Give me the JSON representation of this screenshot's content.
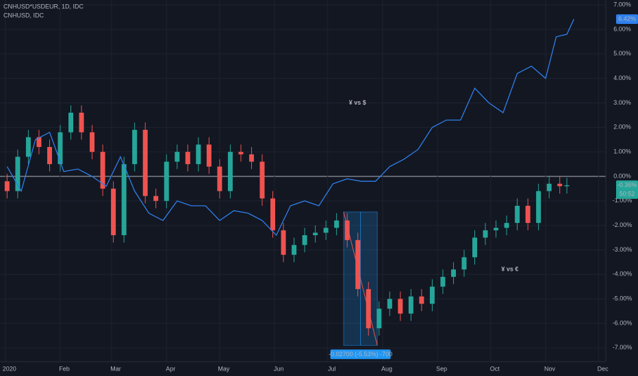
{
  "chart_data": {
    "type": "candlestick",
    "xlim": [
      -2,
      340
    ],
    "ylim": [
      -7.45,
      7.2
    ],
    "grid": true,
    "background": "#131722",
    "xticks": [
      {
        "value": 1,
        "label": "2020"
      },
      {
        "value": 32,
        "label": "Feb"
      },
      {
        "value": 61,
        "label": "Mar"
      },
      {
        "value": 92,
        "label": "Apr"
      },
      {
        "value": 122,
        "label": "May"
      },
      {
        "value": 153,
        "label": "Jun"
      },
      {
        "value": 183,
        "label": "Jul"
      },
      {
        "value": 214,
        "label": "Aug"
      },
      {
        "value": 245,
        "label": "Sep"
      },
      {
        "value": 275,
        "label": "Oct"
      },
      {
        "value": 306,
        "label": "Nov"
      },
      {
        "value": 336,
        "label": "Dec"
      }
    ],
    "yticks": [
      {
        "value": 7,
        "label": "7.00%"
      },
      {
        "value": 6,
        "label": "6.00%"
      },
      {
        "value": 5,
        "label": "5.00%"
      },
      {
        "value": 4,
        "label": "4.00%"
      },
      {
        "value": 3,
        "label": "3.00%"
      },
      {
        "value": 2,
        "label": "2.00%"
      },
      {
        "value": 1,
        "label": "1.00%"
      },
      {
        "value": 0,
        "label": "0.00%"
      },
      {
        "value": -1,
        "label": "-1.00%"
      },
      {
        "value": -2,
        "label": "-2.00%"
      },
      {
        "value": -3,
        "label": "-3.00%"
      },
      {
        "value": -4,
        "label": "-4.00%"
      },
      {
        "value": -5,
        "label": "-5.00%"
      },
      {
        "value": -6,
        "label": "-6.00%"
      },
      {
        "value": -7,
        "label": "-7.00%"
      }
    ],
    "series": [
      {
        "name": "CNHUSD*USDEUR, 1D, IDC",
        "type": "candlestick",
        "up_color": "#26a69a",
        "down_color": "#ef5350",
        "x": [
          2,
          8,
          14,
          20,
          26,
          32,
          38,
          44,
          50,
          56,
          62,
          68,
          74,
          80,
          86,
          92,
          98,
          104,
          110,
          116,
          122,
          128,
          134,
          140,
          146,
          152,
          158,
          164,
          170,
          176,
          182,
          188,
          194,
          200,
          206,
          212,
          218,
          224,
          230,
          236,
          242,
          248,
          254,
          260,
          266,
          272,
          278,
          284,
          290,
          296,
          302,
          308,
          314,
          318
        ],
        "opens": [
          -0.2,
          -0.6,
          0.8,
          1.6,
          1.2,
          0.5,
          1.8,
          2.6,
          1.8,
          1.0,
          -0.5,
          -2.4,
          0.5,
          1.9,
          -0.8,
          -1.0,
          0.6,
          1.0,
          0.5,
          1.3,
          0.4,
          -0.6,
          1.0,
          0.9,
          0.6,
          -0.9,
          -2.2,
          -3.2,
          -2.8,
          -2.4,
          -2.3,
          -2.1,
          -1.8,
          -2.6,
          -4.6,
          -6.2,
          -5.4,
          -5.0,
          -5.6,
          -4.9,
          -5.2,
          -4.5,
          -4.1,
          -3.8,
          -3.3,
          -2.5,
          -2.2,
          -2.1,
          -1.9,
          -1.2,
          -1.9,
          -0.6,
          -0.3,
          -0.4
        ],
        "highs": [
          0.1,
          1.1,
          1.9,
          1.9,
          1.5,
          2.1,
          2.9,
          2.9,
          2.1,
          1.3,
          -0.2,
          0.8,
          2.2,
          2.2,
          -0.5,
          0.9,
          1.3,
          1.3,
          1.6,
          1.6,
          0.7,
          1.3,
          1.3,
          1.2,
          0.9,
          -0.6,
          -1.9,
          -2.5,
          -2.1,
          -2.0,
          -1.8,
          -1.5,
          -1.5,
          -2.3,
          -4.3,
          -5.1,
          -4.7,
          -4.7,
          -4.6,
          -4.6,
          -4.2,
          -3.8,
          -3.5,
          -3.0,
          -2.2,
          -1.9,
          -1.8,
          -1.6,
          -0.9,
          -0.9,
          -0.3,
          0.0,
          0.0,
          -0.06
        ],
        "lows": [
          -0.9,
          -0.9,
          0.5,
          0.9,
          0.2,
          0.2,
          1.5,
          1.5,
          0.7,
          -0.8,
          -2.7,
          -2.7,
          0.2,
          -1.1,
          -1.3,
          -1.3,
          0.3,
          0.2,
          0.2,
          0.1,
          -0.9,
          -0.9,
          0.6,
          0.3,
          -1.2,
          -2.5,
          -3.5,
          -3.5,
          -3.1,
          -2.7,
          -2.6,
          -2.4,
          -2.9,
          -4.9,
          -6.5,
          -6.5,
          -5.7,
          -5.9,
          -5.9,
          -5.5,
          -5.5,
          -4.8,
          -4.4,
          -4.1,
          -3.6,
          -2.8,
          -2.5,
          -2.4,
          -2.2,
          -2.2,
          -2.2,
          -0.9,
          -0.7,
          -0.7
        ],
        "closes": [
          -0.6,
          0.8,
          1.6,
          1.2,
          0.5,
          1.8,
          2.6,
          1.8,
          1.0,
          -0.5,
          -2.4,
          0.5,
          1.9,
          -0.8,
          -1.0,
          0.6,
          1.0,
          0.5,
          1.3,
          0.4,
          -0.6,
          1.0,
          0.9,
          0.6,
          -0.9,
          -2.2,
          -3.2,
          -2.8,
          -2.4,
          -2.3,
          -2.1,
          -1.8,
          -2.6,
          -4.6,
          -6.2,
          -5.4,
          -5.0,
          -5.6,
          -4.9,
          -5.2,
          -4.5,
          -4.1,
          -3.8,
          -3.3,
          -2.5,
          -2.2,
          -2.1,
          -1.9,
          -1.2,
          -1.9,
          -0.6,
          -0.3,
          -0.4,
          -0.36
        ],
        "last_label": "-0.36%",
        "countdown": "50:52"
      },
      {
        "name": "CNHUSD, IDC",
        "type": "line",
        "color": "#2f80ed",
        "x": [
          2,
          10,
          18,
          26,
          34,
          42,
          50,
          58,
          66,
          74,
          82,
          90,
          98,
          106,
          114,
          122,
          130,
          138,
          146,
          154,
          162,
          170,
          178,
          186,
          194,
          202,
          210,
          218,
          226,
          234,
          242,
          250,
          258,
          266,
          274,
          282,
          290,
          298,
          306,
          312,
          318,
          322
        ],
        "values": [
          0.4,
          -0.6,
          1.5,
          1.8,
          0.2,
          0.3,
          0.0,
          -0.4,
          0.8,
          -0.6,
          -1.5,
          -1.8,
          -1.0,
          -1.2,
          -1.2,
          -1.8,
          -1.4,
          -1.5,
          -1.8,
          -2.4,
          -1.2,
          -1.0,
          -1.2,
          -0.3,
          -0.1,
          -0.2,
          -0.2,
          0.4,
          0.7,
          1.1,
          2.0,
          2.3,
          2.3,
          3.6,
          3.0,
          2.6,
          4.2,
          4.5,
          4.0,
          5.7,
          5.8,
          6.42
        ],
        "last_label": "6.42%"
      }
    ],
    "annotations": [
      {
        "text": "¥ vs $",
        "color": "#2f80ed",
        "x": 195,
        "y": 3
      },
      {
        "text": "¥ vs €",
        "color": "#f5e31a",
        "x": 281,
        "y": -3.8
      }
    ],
    "measure": {
      "label": "-0.02700 (-5.53%) -700",
      "x": [
        192,
        211
      ],
      "y": [
        -1.45,
        -6.9
      ]
    }
  }
}
